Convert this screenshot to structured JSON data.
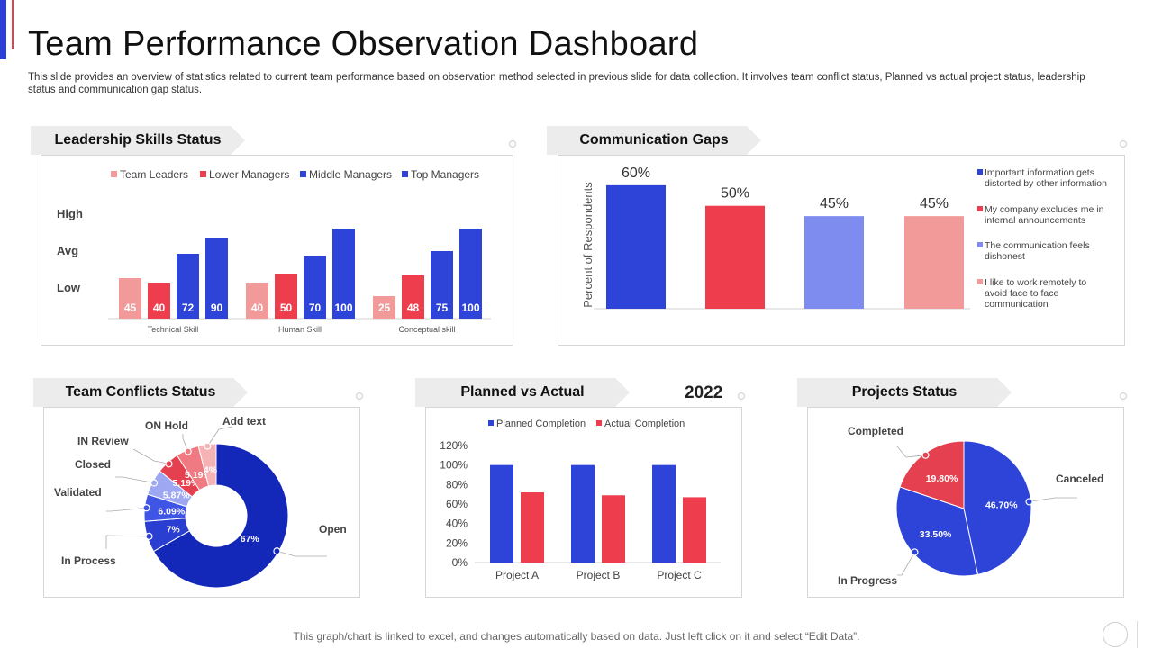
{
  "page": {
    "title": "Team Performance Observation Dashboard",
    "subtitle": "This slide provides an overview of statistics related to current team performance based on observation method selected in previous slide for data collection. It involves team conflict status, Planned vs actual project status, leadership status and communication gap status.",
    "footer": "This graph/chart is linked to excel,  and changes automatically based on data. Just left click on it and select “Edit Data”.",
    "year": "2022"
  },
  "colors": {
    "accent_blue": "#2b3fd6",
    "accent_red": "#e5404f",
    "team_leaders": "#f29a9a",
    "lower_managers": "#ee3e4e",
    "middle_managers": "#2e44d8",
    "top_managers": "#2e44d8",
    "periwinkle": "#7f8cef",
    "navy": "#1327b8"
  },
  "chart_data": [
    {
      "id": "leadership",
      "type": "bar",
      "title": "Leadership Skills Status",
      "categories": [
        "Technical Skill",
        "Human Skill",
        "Conceptual skill"
      ],
      "series": [
        {
          "name": "Team Leaders",
          "values": [
            45,
            40,
            25
          ],
          "color": "#f29a9a"
        },
        {
          "name": "Lower Managers",
          "values": [
            40,
            50,
            48
          ],
          "color": "#ee3e4e"
        },
        {
          "name": "Middle Managers",
          "values": [
            72,
            70,
            75
          ],
          "color": "#2e44d8"
        },
        {
          "name": "Top Managers",
          "values": [
            90,
            100,
            100
          ],
          "color": "#2e44d8"
        }
      ],
      "y_labels": [
        "High",
        "Avg",
        "Low"
      ],
      "ylim": [
        0,
        100
      ]
    },
    {
      "id": "communication",
      "type": "bar",
      "title": "Communication Gaps",
      "ylabel": "Percent of Respondents",
      "categories": [
        "Important information gets distorted by other information",
        "My company excludes me in internal announcements",
        "The communication feels dishonest",
        "I like to work remotely to avoid face to face communication"
      ],
      "legend_lines": [
        [
          "Important information gets",
          "distorted by other information"
        ],
        [
          "My company excludes me in",
          "internal announcements"
        ],
        [
          "The communication feels",
          "dishonest"
        ],
        [
          "I like to work remotely to",
          "avoid face to face",
          "communication"
        ]
      ],
      "values": [
        60,
        50,
        45,
        45
      ],
      "value_labels": [
        "60%",
        "50%",
        "45%",
        "45%"
      ],
      "colors": [
        "#2e44d8",
        "#ee3e4e",
        "#7f8cef",
        "#f29a9a"
      ],
      "ylim": [
        0,
        70
      ]
    },
    {
      "id": "conflicts",
      "type": "pie",
      "title": "Team Conflicts Status",
      "slices": [
        {
          "name": "Open",
          "value": 67,
          "label": "67%",
          "color": "#1327b8"
        },
        {
          "name": "In Process",
          "value": 7,
          "label": "7%",
          "color": "#2a3fd2"
        },
        {
          "name": "Validated",
          "value": 6.09,
          "label": "6.09%",
          "color": "#3f55e6"
        },
        {
          "name": "Closed",
          "value": 5.87,
          "label": "5.87%",
          "color": "#9ea8f2"
        },
        {
          "name": "IN Review",
          "value": 5.19,
          "label": "5.19%",
          "color": "#e5404f"
        },
        {
          "name": "ON Hold",
          "value": 5.19,
          "label": "5.19%",
          "color": "#f07a82"
        },
        {
          "name": "Add text",
          "value": 4,
          "label": "4%",
          "color": "#f6b3b6"
        }
      ]
    },
    {
      "id": "planned",
      "type": "bar",
      "title": "Planned vs Actual",
      "categories": [
        "Project A",
        "Project B",
        "Project C"
      ],
      "series": [
        {
          "name": "Planned Completion",
          "values": [
            100,
            100,
            100
          ],
          "color": "#2e44d8"
        },
        {
          "name": "Actual Completion",
          "values": [
            72,
            69,
            67
          ],
          "color": "#ee3e4e"
        }
      ],
      "y_ticks": [
        "0%",
        "20%",
        "40%",
        "60%",
        "80%",
        "100%",
        "120%"
      ],
      "ylim": [
        0,
        120
      ]
    },
    {
      "id": "projects",
      "type": "pie",
      "title": "Projects Status",
      "slices": [
        {
          "name": "Canceled",
          "value": 46.7,
          "label": "46.70%",
          "color": "#2e44d8"
        },
        {
          "name": "In Progress",
          "value": 33.5,
          "label": "33.50%",
          "color": "#2e44d8"
        },
        {
          "name": "Completed",
          "value": 19.8,
          "label": "19.80%",
          "color": "#e5404f"
        }
      ]
    }
  ]
}
